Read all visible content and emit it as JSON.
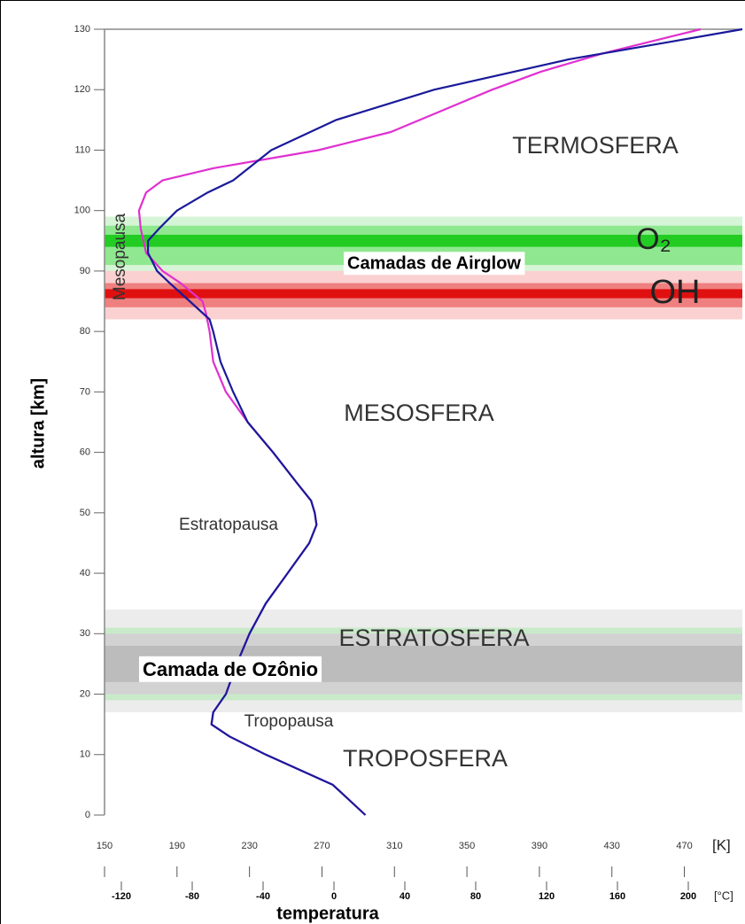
{
  "chart_data": {
    "type": "line",
    "xlabel": "temperatura",
    "ylabel": "altura [km]",
    "xunit": "[K]",
    "x2unit": "[°C]",
    "xlim": [
      150,
      502
    ],
    "xticks": [
      150,
      190,
      230,
      270,
      310,
      350,
      390,
      430,
      470
    ],
    "x2lim": [
      -129.5,
      230.5
    ],
    "x2ticks": [
      -120,
      -80,
      -40,
      0,
      40,
      80,
      120,
      160,
      200
    ],
    "ylim": [
      0,
      130
    ],
    "yticks": [
      0,
      10,
      20,
      30,
      40,
      50,
      60,
      70,
      80,
      90,
      100,
      110,
      120,
      130
    ],
    "bands": [
      {
        "range": [
          17,
          34
        ],
        "color": "#ececec"
      },
      {
        "range": [
          19,
          31
        ],
        "color": "#c9eac9"
      },
      {
        "range": [
          20,
          30
        ],
        "color": "#d2d2d2"
      },
      {
        "range": [
          22,
          28
        ],
        "color": "#bcbcbc"
      },
      {
        "range": [
          88,
          99
        ],
        "color": "#d6f5d6"
      },
      {
        "range": [
          91,
          97.5
        ],
        "color": "#8fe88f"
      },
      {
        "range": [
          94,
          96
        ],
        "color": "#22cc22"
      },
      {
        "range": [
          82,
          90
        ],
        "color": "#fbd0d0"
      },
      {
        "range": [
          84,
          88
        ],
        "color": "#f08080"
      },
      {
        "range": [
          85.5,
          87
        ],
        "color": "#e01010"
      }
    ],
    "series": [
      {
        "color": "#e030d0",
        "y": [
          0,
          5,
          10,
          13,
          15,
          17,
          20,
          25,
          30,
          35,
          40,
          45,
          48,
          50,
          52,
          55,
          60,
          65,
          70,
          75,
          80,
          83,
          85,
          88,
          90,
          93,
          97,
          100,
          103,
          105,
          107,
          110,
          113,
          116,
          120,
          123,
          126,
          130
        ],
        "x": [
          294,
          276,
          239,
          219,
          209,
          210,
          217,
          223,
          230,
          239,
          251,
          263,
          267,
          266,
          264,
          256,
          243,
          229,
          217,
          210,
          208,
          206,
          204,
          192,
          182,
          173,
          170,
          169,
          173,
          182,
          210,
          268,
          308,
          332,
          364,
          391,
          425,
          479
        ]
      },
      {
        "color": "#1a1a9a",
        "y": [
          0,
          5,
          10,
          13,
          15,
          17,
          20,
          25,
          30,
          35,
          40,
          45,
          48,
          50,
          52,
          55,
          60,
          65,
          70,
          75,
          80,
          82,
          85,
          88,
          90,
          93,
          95,
          97,
          100,
          103,
          105,
          110,
          115,
          120,
          125,
          128,
          130
        ],
        "x": [
          294,
          276,
          239,
          219,
          209,
          210,
          217,
          223,
          230,
          239,
          251,
          263,
          267,
          266,
          264,
          256,
          243,
          229,
          221,
          214,
          210,
          208,
          197,
          186,
          179,
          174,
          174,
          180,
          190,
          207,
          221,
          242,
          278,
          332,
          406,
          464,
          502
        ]
      }
    ],
    "annotations": {
      "termosfera": "TERMOSFERA",
      "o2": "O₂",
      "airglow": "Camadas de Airglow",
      "oh": "OH",
      "mesopausa": "Mesopausa",
      "mesosfera": "MESOSFERA",
      "estratopausa": "Estratopausa",
      "estratosfera": "ESTRATOSFERA",
      "ozonio": "Camada de Ozônio",
      "tropopausa": "Tropopausa",
      "troposfera": "TROPOSFERA"
    }
  }
}
